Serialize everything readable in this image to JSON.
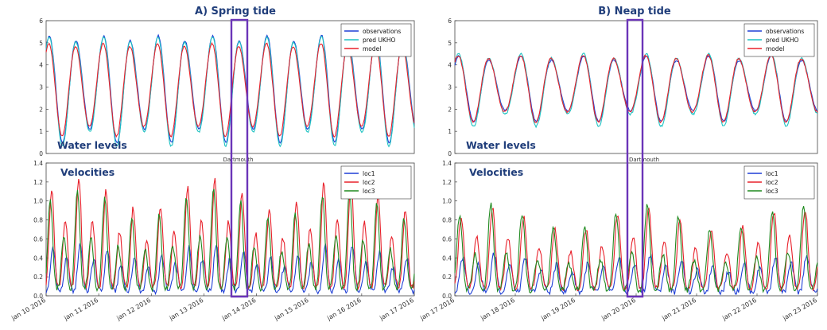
{
  "chart_data": [
    {
      "type": "line",
      "title": "A) Spring tide",
      "annotation": "Water levels",
      "subtitle": "Dartmouth",
      "ylim": [
        0,
        6
      ],
      "yticks": [
        "0",
        "1",
        "2",
        "3",
        "4",
        "5",
        "6"
      ],
      "x_range": [
        "jan 10 2016",
        "jan 17 2016"
      ],
      "grid": false,
      "legend_position": "top-right",
      "highlight": {
        "from": "jan 13 2016 18:00",
        "to": "jan 14 2016 00:00"
      },
      "series": [
        {
          "name": "observations",
          "color": "#1f3fd6",
          "mean": 3.0,
          "amp": 2.2,
          "amp_var": 0.15,
          "phase": 0.0
        },
        {
          "name": "pred UKHO",
          "color": "#1ec2c2",
          "mean": 2.9,
          "amp": 2.25,
          "amp_var": 0.15,
          "phase": 0.03
        },
        {
          "name": "model",
          "color": "#e8202a",
          "mean": 2.95,
          "amp": 1.95,
          "amp_var": 0.12,
          "phase": 0.12
        }
      ],
      "period_hours": 12.42
    },
    {
      "type": "line",
      "title": "",
      "annotation": "Velocities",
      "subtitle": "",
      "ylim": [
        0,
        1.4
      ],
      "yticks": [
        "0.0",
        "0.2",
        "0.4",
        "0.6",
        "0.8",
        "1.0",
        "1.2",
        "1.4"
      ],
      "xticks": [
        "jan 10 2016",
        "jan 11 2016",
        "jan 12 2016",
        "jan 13 2016",
        "jan 14 2016",
        "jan 15 2016",
        "jan 16 2016",
        "jan 17 2016"
      ],
      "grid": false,
      "legend_position": "top-right",
      "highlight": {
        "from": "jan 13 2016 18:00",
        "to": "jan 14 2016 00:00"
      },
      "series": [
        {
          "name": "loc1",
          "color": "#1f3fd6",
          "peak_major": 0.5,
          "peak_minor": 0.35,
          "base": 0.12
        },
        {
          "name": "loc2",
          "color": "#e8202a",
          "peak_major": 1.15,
          "peak_minor": 0.72,
          "base": 0.25
        },
        {
          "name": "loc3",
          "color": "#1f8a1f",
          "peak_major": 1.05,
          "peak_minor": 0.55,
          "base": 0.2
        }
      ]
    },
    {
      "type": "line",
      "title": "B) Neap tide",
      "annotation": "Water levels",
      "subtitle": "Dartmouth",
      "ylim": [
        0,
        6
      ],
      "yticks": [
        "0",
        "1",
        "2",
        "3",
        "4",
        "5",
        "6"
      ],
      "x_range": [
        "jan 17 2016",
        "jan 23 2016"
      ],
      "grid": false,
      "legend_position": "top-right",
      "highlight": {
        "from": "jan 19 2016 23:00",
        "to": "jan 20 2016 06:00"
      },
      "series": [
        {
          "name": "observations",
          "color": "#1f3fd6",
          "mean": 3.0,
          "amp": 1.3,
          "amp_var": 0.2,
          "phase": 0.0
        },
        {
          "name": "pred UKHO",
          "color": "#1ec2c2",
          "mean": 2.95,
          "amp": 1.45,
          "amp_var": 0.2,
          "phase": 0.02
        },
        {
          "name": "model",
          "color": "#e8202a",
          "mean": 3.0,
          "amp": 1.35,
          "amp_var": 0.18,
          "phase": 0.1
        }
      ],
      "period_hours": 12.42
    },
    {
      "type": "line",
      "title": "",
      "annotation": "Velocities",
      "subtitle": "",
      "ylim": [
        0,
        1.4
      ],
      "yticks": [
        "0.0",
        "0.2",
        "0.4",
        "0.6",
        "0.8",
        "1.0",
        "1.2",
        "1.4"
      ],
      "xticks": [
        "jan 17 2016",
        "jan 18 2016",
        "jan 19 2016",
        "jan 20 2016",
        "jan 21 2016",
        "jan 22 2016",
        "jan 23 2016"
      ],
      "grid": false,
      "legend_position": "top-right",
      "highlight": {
        "from": "jan 19 2016 23:00",
        "to": "jan 20 2016 06:00"
      },
      "series": [
        {
          "name": "loc1",
          "color": "#1f3fd6",
          "peak_major": 0.4,
          "peak_minor": 0.3,
          "base": 0.1
        },
        {
          "name": "loc2",
          "color": "#e8202a",
          "peak_major": 0.85,
          "peak_minor": 0.55,
          "base": 0.2
        },
        {
          "name": "loc3",
          "color": "#1f8a1f",
          "peak_major": 0.9,
          "peak_minor": 0.4,
          "base": 0.15
        }
      ]
    }
  ]
}
